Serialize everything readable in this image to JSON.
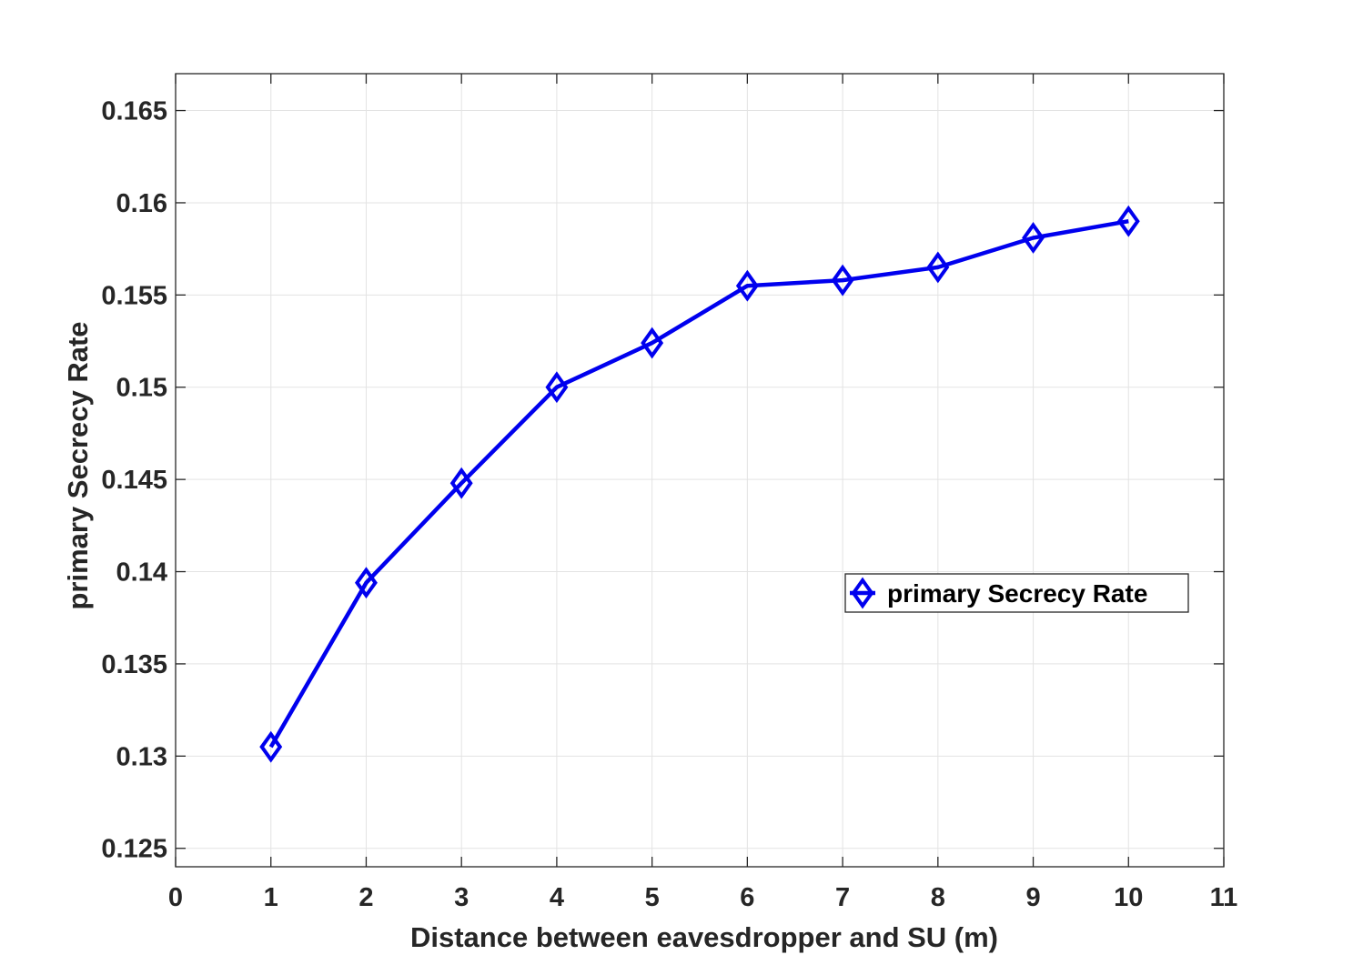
{
  "chart_data": {
    "type": "line",
    "xlabel": "Distance between eavesdropper and SU (m)",
    "ylabel": "primary Secrecy Rate",
    "xlim": [
      0,
      11
    ],
    "ylim": [
      0.124,
      0.167
    ],
    "x_ticks": [
      0,
      1,
      2,
      3,
      4,
      5,
      6,
      7,
      8,
      9,
      10,
      11
    ],
    "x_tick_labels": [
      "0",
      "1",
      "2",
      "3",
      "4",
      "5",
      "6",
      "7",
      "8",
      "9",
      "10",
      "11"
    ],
    "y_ticks": [
      0.125,
      0.13,
      0.135,
      0.14,
      0.145,
      0.15,
      0.155,
      0.16,
      0.165
    ],
    "y_tick_labels": [
      "0.125",
      "0.13",
      "0.135",
      "0.14",
      "0.145",
      "0.15",
      "0.155",
      "0.16",
      "0.165"
    ],
    "grid": true,
    "legend_position": "center-right",
    "series": [
      {
        "name": "primary Secrecy Rate",
        "color": "#0000ee",
        "marker": "diamond",
        "x": [
          1,
          2,
          3,
          4,
          5,
          6,
          7,
          8,
          9,
          10
        ],
        "y": [
          0.1305,
          0.1394,
          0.1448,
          0.15,
          0.1524,
          0.1555,
          0.1558,
          0.1565,
          0.1581,
          0.159
        ]
      }
    ]
  }
}
